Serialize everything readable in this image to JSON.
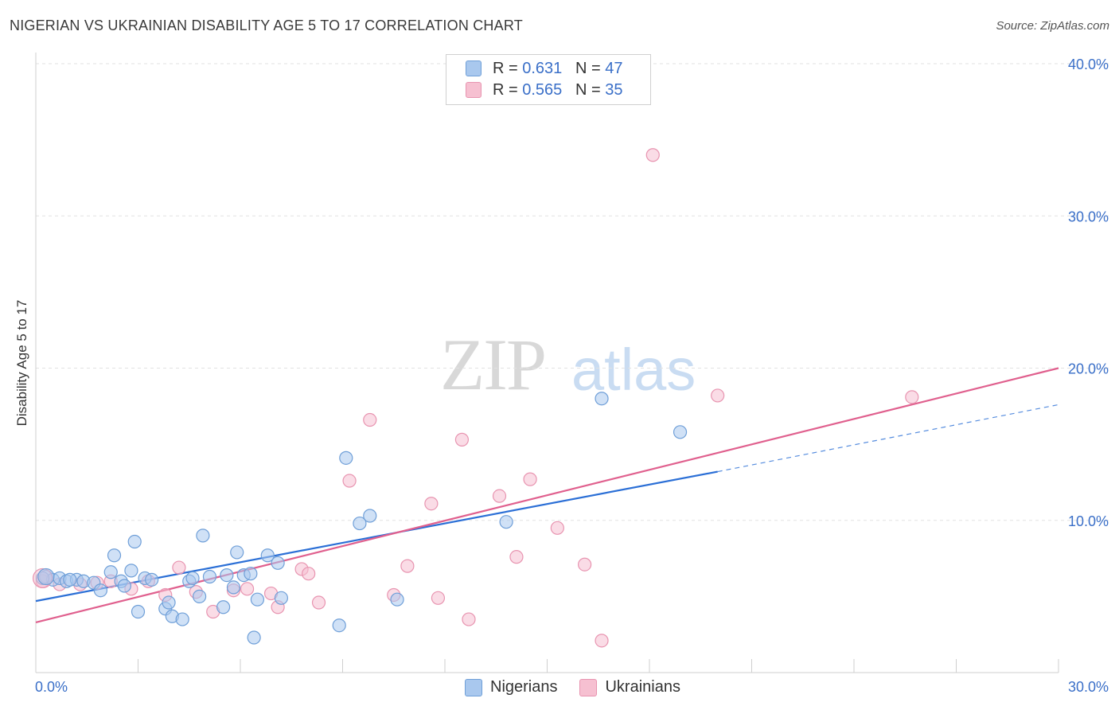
{
  "header": {
    "title": "NIGERIAN VS UKRAINIAN DISABILITY AGE 5 TO 17 CORRELATION CHART",
    "source": "Source: ZipAtlas.com"
  },
  "legend": {
    "rows": [
      {
        "r_label": "R = ",
        "r_value": "0.631",
        "n_label": "N = ",
        "n_value": "47"
      },
      {
        "r_label": "R = ",
        "r_value": "0.565",
        "n_label": "N = ",
        "n_value": "35"
      }
    ]
  },
  "bottom_legend": {
    "nigerians": "Nigerians",
    "ukrainians": "Ukrainians"
  },
  "watermark": {
    "zip": "ZIP",
    "atlas": "atlas"
  },
  "colors": {
    "nigerians_fill": "#a9c8ee",
    "nigerians_stroke": "#6f9fd8",
    "nigerians_line": "#2b6fd6",
    "ukrainians_fill": "#f6c0d1",
    "ukrainians_stroke": "#e894b0",
    "ukrainians_line": "#e0608e",
    "axis_text": "#3a6fc8"
  },
  "chart_data": {
    "type": "scatter",
    "title": "NIGERIAN VS UKRAINIAN DISABILITY AGE 5 TO 17 CORRELATION CHART",
    "xlabel": "",
    "ylabel": "Disability Age 5 to 17",
    "xlim": [
      0,
      30
    ],
    "ylim": [
      0,
      40
    ],
    "x_tick_labels": [
      "0.0%",
      "30.0%"
    ],
    "y_ticks": [
      10,
      20,
      30,
      40
    ],
    "y_tick_labels": [
      "10.0%",
      "20.0%",
      "30.0%",
      "40.0%"
    ],
    "grid": true,
    "legend_position": "top-center",
    "series": [
      {
        "name": "Nigerians",
        "R": 0.631,
        "N": 47,
        "trend": {
          "x": [
            0,
            20
          ],
          "y": [
            4.7,
            13.2
          ],
          "dashed_extension_to": [
            30,
            17.6
          ]
        },
        "points": [
          [
            0.3,
            6.3
          ],
          [
            0.5,
            6.1
          ],
          [
            0.7,
            6.2
          ],
          [
            0.9,
            6.0
          ],
          [
            1.2,
            6.1
          ],
          [
            1.4,
            6.0
          ],
          [
            1.7,
            5.9
          ],
          [
            1.9,
            5.4
          ],
          [
            2.2,
            6.6
          ],
          [
            2.3,
            7.7
          ],
          [
            2.5,
            6.0
          ],
          [
            2.6,
            5.7
          ],
          [
            2.8,
            6.7
          ],
          [
            2.9,
            8.6
          ],
          [
            3.2,
            6.2
          ],
          [
            3.0,
            4.0
          ],
          [
            3.8,
            4.2
          ],
          [
            3.9,
            4.6
          ],
          [
            4.0,
            3.7
          ],
          [
            4.3,
            3.5
          ],
          [
            4.5,
            6.0
          ],
          [
            4.6,
            6.2
          ],
          [
            4.8,
            5.0
          ],
          [
            4.9,
            9.0
          ],
          [
            5.5,
            4.3
          ],
          [
            5.6,
            6.4
          ],
          [
            5.8,
            5.6
          ],
          [
            5.9,
            7.9
          ],
          [
            6.1,
            6.4
          ],
          [
            6.3,
            6.5
          ],
          [
            6.4,
            2.3
          ],
          [
            6.5,
            4.8
          ],
          [
            6.8,
            7.7
          ],
          [
            7.1,
            7.2
          ],
          [
            7.2,
            4.9
          ],
          [
            8.9,
            3.1
          ],
          [
            9.1,
            14.1
          ],
          [
            9.5,
            9.8
          ],
          [
            9.8,
            10.3
          ],
          [
            10.6,
            4.8
          ],
          [
            13.8,
            9.9
          ],
          [
            16.6,
            18.0
          ],
          [
            18.9,
            15.8
          ],
          [
            0.2,
            6.2
          ],
          [
            1.0,
            6.1
          ],
          [
            3.4,
            6.1
          ],
          [
            5.1,
            6.3
          ]
        ]
      },
      {
        "name": "Ukrainians",
        "R": 0.565,
        "N": 35,
        "trend": {
          "x": [
            0,
            30
          ],
          "y": [
            3.3,
            20.0
          ]
        },
        "points": [
          [
            0.2,
            6.0
          ],
          [
            0.7,
            5.8
          ],
          [
            1.3,
            5.8
          ],
          [
            1.8,
            5.9
          ],
          [
            2.2,
            6.0
          ],
          [
            2.8,
            5.5
          ],
          [
            3.3,
            6.0
          ],
          [
            3.8,
            5.1
          ],
          [
            4.2,
            6.9
          ],
          [
            4.7,
            5.3
          ],
          [
            5.2,
            4.0
          ],
          [
            5.8,
            5.4
          ],
          [
            6.2,
            5.5
          ],
          [
            6.9,
            5.2
          ],
          [
            7.1,
            4.3
          ],
          [
            7.8,
            6.8
          ],
          [
            8.0,
            6.5
          ],
          [
            8.3,
            4.6
          ],
          [
            9.2,
            12.6
          ],
          [
            9.8,
            16.6
          ],
          [
            10.5,
            5.1
          ],
          [
            10.9,
            7.0
          ],
          [
            11.6,
            11.1
          ],
          [
            11.8,
            4.9
          ],
          [
            12.5,
            15.3
          ],
          [
            12.7,
            3.5
          ],
          [
            13.6,
            11.6
          ],
          [
            14.1,
            7.6
          ],
          [
            14.5,
            12.7
          ],
          [
            15.3,
            9.5
          ],
          [
            16.1,
            7.1
          ],
          [
            16.6,
            2.1
          ],
          [
            18.1,
            34.0
          ],
          [
            20.0,
            18.2
          ],
          [
            25.7,
            18.1
          ]
        ]
      }
    ]
  }
}
